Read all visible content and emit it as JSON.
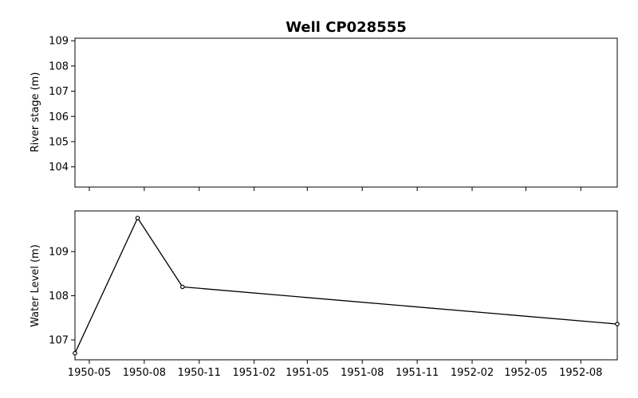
{
  "chart_data": {
    "type": "line",
    "title": "Well CP028555",
    "x_tick_labels": [
      "1950-05",
      "1950-08",
      "1950-11",
      "1951-02",
      "1951-05",
      "1951-08",
      "1951-11",
      "1952-02",
      "1952-05",
      "1952-08"
    ],
    "panels": [
      {
        "id": "river-stage",
        "ylabel": "River stage (m)",
        "ylim": [
          103.2,
          109.1
        ],
        "yticks": [
          104,
          105,
          106,
          107,
          108,
          109
        ],
        "series": []
      },
      {
        "id": "water-level",
        "ylabel": "Water Level (m)",
        "ylim": [
          106.55,
          109.92
        ],
        "yticks": [
          107,
          108,
          109
        ],
        "series": [
          {
            "color": "#000000",
            "marker": "circle",
            "points": [
              {
                "x": "1950-04-07",
                "y": 106.7
              },
              {
                "x": "1950-07-21",
                "y": 109.76
              },
              {
                "x": "1950-10-04",
                "y": 108.2
              },
              {
                "x": "1952-10-01",
                "y": 107.36
              }
            ]
          }
        ]
      }
    ],
    "xlim": [
      "1950-04-07",
      "1952-10-01"
    ],
    "grid": false,
    "legend": false
  }
}
